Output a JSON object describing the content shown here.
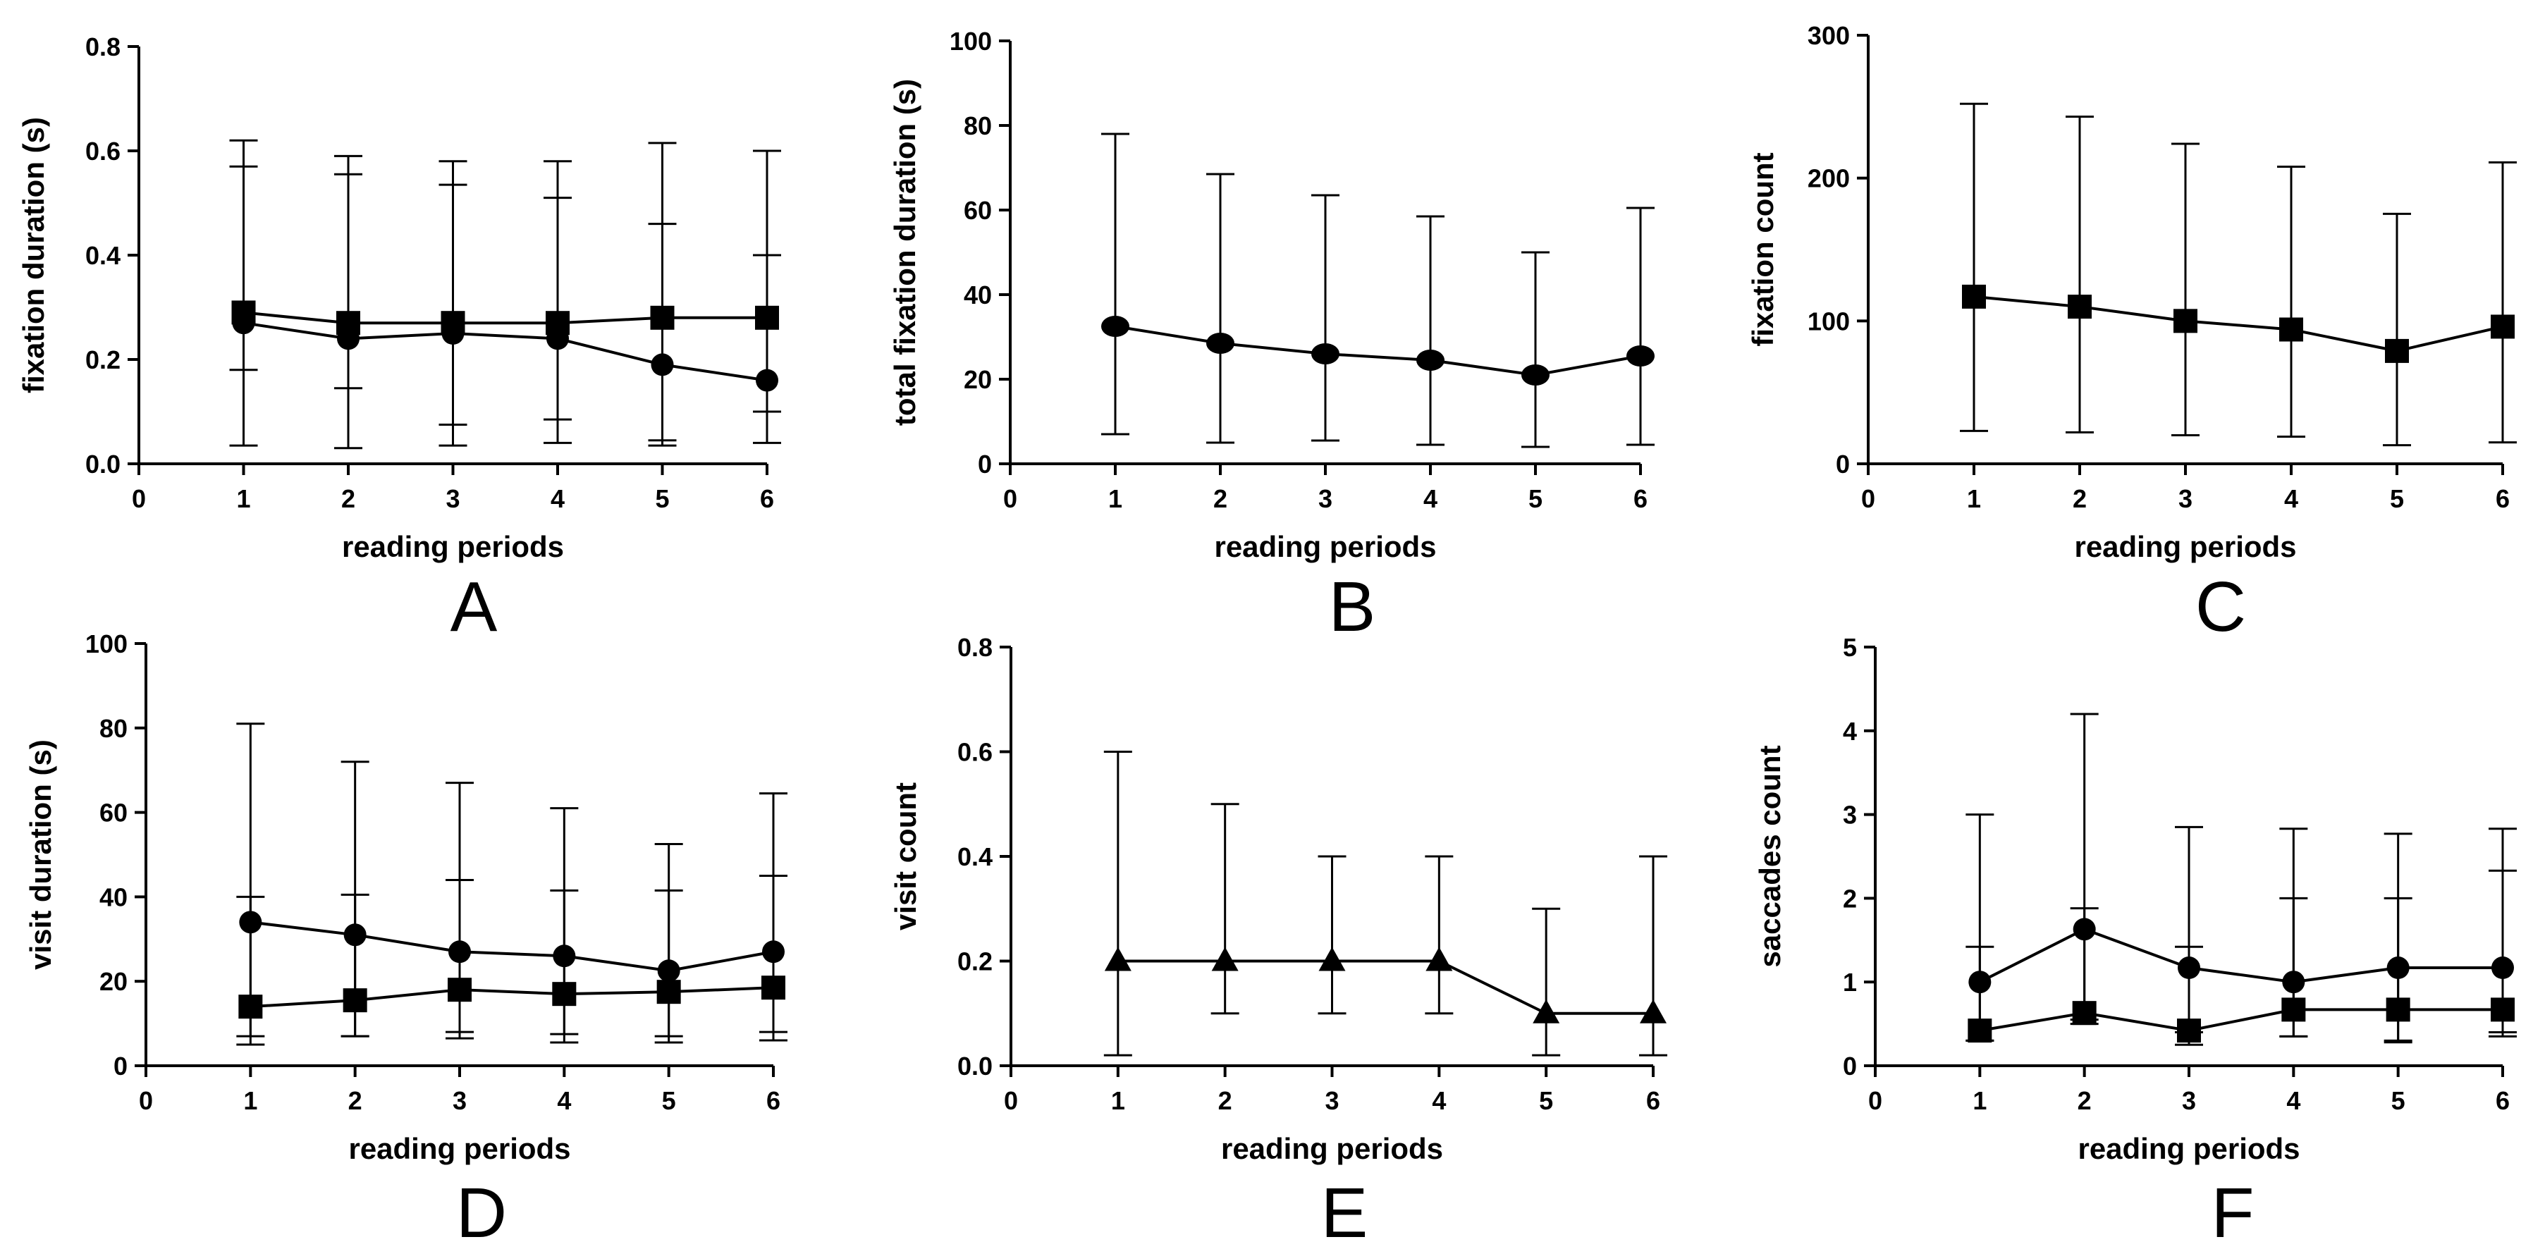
{
  "figure": {
    "panels": [
      "A",
      "B",
      "C",
      "D",
      "E",
      "F"
    ]
  },
  "chart_data": [
    {
      "type": "line",
      "panel": "A",
      "xlabel": "reading periods",
      "ylabel": "fixation duration (s)",
      "xlim": [
        0,
        6
      ],
      "ylim": [
        0,
        0.8
      ],
      "xticks": [
        "0",
        "1",
        "2",
        "3",
        "4",
        "5",
        "6"
      ],
      "yticks": [
        "0.0",
        "0.2",
        "0.4",
        "0.6",
        "0.8"
      ],
      "yticks_values": [
        0,
        0.2,
        0.4,
        0.6,
        0.8
      ],
      "x": [
        1,
        2,
        3,
        4,
        5,
        6
      ],
      "series": [
        {
          "marker": "square",
          "values": [
            0.29,
            0.27,
            0.27,
            0.27,
            0.28,
            0.28
          ],
          "err_low": [
            0.18,
            0.145,
            0.075,
            0.085,
            0.045,
            0.1
          ],
          "err_high": [
            0.57,
            0.555,
            0.535,
            0.51,
            0.46,
            0.4
          ]
        },
        {
          "marker": "circle",
          "values": [
            0.27,
            0.24,
            0.25,
            0.24,
            0.19,
            0.16
          ],
          "err_low": [
            0.035,
            0.03,
            0.035,
            0.04,
            0.035,
            0.04
          ],
          "err_high": [
            0.62,
            0.59,
            0.58,
            0.58,
            0.615,
            0.6
          ]
        }
      ],
      "grid": false,
      "legend": "none"
    },
    {
      "type": "line",
      "panel": "B",
      "xlabel": "reading periods",
      "ylabel": "total fixation duration (s)",
      "xlim": [
        0,
        6
      ],
      "ylim": [
        0,
        100
      ],
      "xticks": [
        "0",
        "1",
        "2",
        "3",
        "4",
        "5",
        "6"
      ],
      "yticks": [
        "0",
        "20",
        "40",
        "60",
        "80",
        "100"
      ],
      "yticks_values": [
        0,
        20,
        40,
        60,
        80,
        100
      ],
      "x": [
        1,
        2,
        3,
        4,
        5,
        6
      ],
      "series": [
        {
          "marker": "ellipse",
          "values": [
            32.5,
            28.5,
            26,
            24.5,
            21,
            25.5
          ],
          "err_low": [
            7,
            5,
            5.5,
            4.5,
            4,
            4.5
          ],
          "err_high": [
            78,
            68.5,
            63.5,
            58.5,
            50,
            60.5
          ]
        }
      ],
      "grid": false,
      "legend": "none"
    },
    {
      "type": "line",
      "panel": "C",
      "xlabel": "reading periods",
      "ylabel": "fixation count",
      "xlim": [
        0,
        6
      ],
      "ylim": [
        0,
        300
      ],
      "xticks": [
        "0",
        "1",
        "2",
        "3",
        "4",
        "5",
        "6"
      ],
      "yticks": [
        "0",
        "100",
        "200",
        "300"
      ],
      "yticks_values": [
        0,
        100,
        200,
        300
      ],
      "x": [
        1,
        2,
        3,
        4,
        5,
        6
      ],
      "series": [
        {
          "marker": "square",
          "values": [
            117,
            110,
            100,
            94,
            79,
            96
          ],
          "err_low": [
            23,
            22,
            20,
            19,
            13,
            15
          ],
          "err_high": [
            252,
            243,
            224,
            208,
            175,
            211
          ]
        }
      ],
      "grid": false,
      "legend": "none"
    },
    {
      "type": "line",
      "panel": "D",
      "xlabel": "reading periods",
      "ylabel": "visit duration (s)",
      "xlim": [
        0,
        6
      ],
      "ylim": [
        0,
        100
      ],
      "xticks": [
        "0",
        "1",
        "2",
        "3",
        "4",
        "5",
        "6"
      ],
      "yticks": [
        "0",
        "20",
        "40",
        "60",
        "80",
        "100"
      ],
      "yticks_values": [
        0,
        20,
        40,
        60,
        80,
        100
      ],
      "x": [
        1,
        2,
        3,
        4,
        5,
        6
      ],
      "series": [
        {
          "marker": "circle",
          "values": [
            34,
            31,
            27,
            26,
            22.5,
            27
          ],
          "err_low": [
            7,
            7,
            8,
            7.5,
            7,
            8
          ],
          "err_high": [
            81,
            72,
            67,
            61,
            52.5,
            64.5
          ]
        },
        {
          "marker": "square",
          "values": [
            14,
            15.5,
            18,
            17,
            17.5,
            18.5
          ],
          "err_low": [
            5,
            7,
            6.5,
            5.5,
            5.5,
            6
          ],
          "err_high": [
            40,
            40.5,
            44,
            41.5,
            41.5,
            45
          ]
        }
      ],
      "grid": false,
      "legend": "none"
    },
    {
      "type": "line",
      "panel": "E",
      "xlabel": "reading periods",
      "ylabel": "visit count",
      "xlim": [
        0,
        6
      ],
      "ylim": [
        0,
        0.8
      ],
      "xticks": [
        "0",
        "1",
        "2",
        "3",
        "4",
        "5",
        "6"
      ],
      "yticks": [
        "0.0",
        "0.2",
        "0.4",
        "0.6",
        "0.8"
      ],
      "yticks_values": [
        0,
        0.2,
        0.4,
        0.6,
        0.8
      ],
      "x": [
        1,
        2,
        3,
        4,
        5,
        6
      ],
      "series": [
        {
          "marker": "triangle",
          "values": [
            0.2,
            0.2,
            0.2,
            0.2,
            0.1,
            0.1
          ],
          "err_low": [
            0.02,
            0.1,
            0.1,
            0.1,
            0.02,
            0.02
          ],
          "err_high": [
            0.6,
            0.5,
            0.4,
            0.4,
            0.3,
            0.4
          ]
        }
      ],
      "grid": false,
      "legend": "none"
    },
    {
      "type": "line",
      "panel": "F",
      "xlabel": "reading periods",
      "ylabel": "saccades count",
      "xlim": [
        0,
        6
      ],
      "ylim": [
        0,
        5
      ],
      "xticks": [
        "0",
        "1",
        "2",
        "3",
        "4",
        "5",
        "6"
      ],
      "yticks": [
        "0",
        "1",
        "2",
        "3",
        "4",
        "5"
      ],
      "yticks_values": [
        0,
        1,
        2,
        3,
        4,
        5
      ],
      "x": [
        1,
        2,
        3,
        4,
        5,
        6
      ],
      "series": [
        {
          "marker": "circle",
          "values": [
            1.0,
            1.63,
            1.17,
            1.0,
            1.17,
            1.17
          ],
          "err_low": [
            0.3,
            0.5,
            0.4,
            0.35,
            0.3,
            0.4
          ],
          "err_high": [
            3.0,
            4.2,
            2.85,
            2.83,
            2.77,
            2.83
          ]
        },
        {
          "marker": "square",
          "values": [
            0.42,
            0.63,
            0.42,
            0.67,
            0.67,
            0.67
          ],
          "err_low": [
            0.3,
            0.55,
            0.25,
            0.35,
            0.28,
            0.35
          ],
          "err_high": [
            1.42,
            1.88,
            1.42,
            2.0,
            2.0,
            2.33
          ]
        }
      ],
      "grid": false,
      "legend": "none"
    }
  ]
}
